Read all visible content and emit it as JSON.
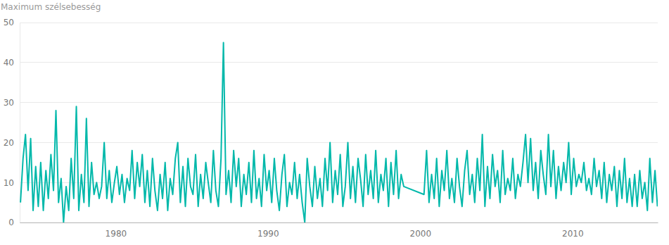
{
  "chart_data": {
    "type": "line",
    "y_label": "Maximum szélsebesség",
    "x": [
      1973.75,
      1973.92,
      1974.08,
      1974.25,
      1974.42,
      1974.58,
      1974.75,
      1974.92,
      1975.08,
      1975.25,
      1975.42,
      1975.58,
      1975.75,
      1975.92,
      1976.08,
      1976.25,
      1976.42,
      1976.58,
      1976.75,
      1976.92,
      1977.08,
      1977.25,
      1977.42,
      1977.58,
      1977.75,
      1977.92,
      1978.08,
      1978.25,
      1978.42,
      1978.58,
      1978.75,
      1978.92,
      1979.08,
      1979.25,
      1979.42,
      1979.58,
      1979.75,
      1979.92,
      1980.08,
      1980.25,
      1980.42,
      1980.58,
      1980.75,
      1980.92,
      1981.08,
      1981.25,
      1981.42,
      1981.58,
      1981.75,
      1981.92,
      1982.08,
      1982.25,
      1982.42,
      1982.58,
      1982.75,
      1982.92,
      1983.08,
      1983.25,
      1983.42,
      1983.58,
      1983.75,
      1983.92,
      1984.08,
      1984.25,
      1984.42,
      1984.58,
      1984.75,
      1984.92,
      1985.08,
      1985.25,
      1985.42,
      1985.58,
      1985.75,
      1985.92,
      1986.08,
      1986.25,
      1986.42,
      1986.58,
      1986.75,
      1986.92,
      1987.08,
      1987.25,
      1987.42,
      1987.58,
      1987.75,
      1987.92,
      1988.08,
      1988.25,
      1988.42,
      1988.58,
      1988.75,
      1988.92,
      1989.08,
      1989.25,
      1989.42,
      1989.58,
      1989.75,
      1989.92,
      1990.08,
      1990.25,
      1990.42,
      1990.58,
      1990.75,
      1990.92,
      1991.08,
      1991.25,
      1991.42,
      1991.58,
      1991.75,
      1991.92,
      1992.08,
      1992.25,
      1992.42,
      1992.58,
      1992.75,
      1992.92,
      1993.08,
      1993.25,
      1993.42,
      1993.58,
      1993.75,
      1993.92,
      1994.08,
      1994.25,
      1994.42,
      1994.58,
      1994.75,
      1994.92,
      1995.08,
      1995.25,
      1995.42,
      1995.58,
      1995.75,
      1995.92,
      1996.08,
      1996.25,
      1996.42,
      1996.58,
      1996.75,
      1996.92,
      1997.08,
      1997.25,
      1997.42,
      1997.58,
      1997.75,
      1997.92,
      1998.08,
      1998.25,
      1998.42,
      1998.58,
      1998.75,
      1998.92,
      2000.25,
      2000.42,
      2000.58,
      2000.75,
      2000.92,
      2001.08,
      2001.25,
      2001.42,
      2001.58,
      2001.75,
      2001.92,
      2002.08,
      2002.25,
      2002.42,
      2002.58,
      2002.75,
      2002.92,
      2003.08,
      2003.25,
      2003.42,
      2003.58,
      2003.75,
      2003.92,
      2004.08,
      2004.25,
      2004.42,
      2004.58,
      2004.75,
      2004.92,
      2005.08,
      2005.25,
      2005.42,
      2005.58,
      2005.75,
      2005.92,
      2006.08,
      2006.25,
      2006.42,
      2006.58,
      2006.75,
      2006.92,
      2007.08,
      2007.25,
      2007.42,
      2007.58,
      2007.75,
      2007.92,
      2008.08,
      2008.25,
      2008.42,
      2008.58,
      2008.75,
      2008.92,
      2009.08,
      2009.25,
      2009.42,
      2009.58,
      2009.75,
      2009.92,
      2010.08,
      2010.25,
      2010.42,
      2010.58,
      2010.75,
      2010.92,
      2011.08,
      2011.25,
      2011.42,
      2011.58,
      2011.75,
      2011.92,
      2012.08,
      2012.25,
      2012.42,
      2012.58,
      2012.75,
      2012.92,
      2013.08,
      2013.25,
      2013.42,
      2013.58,
      2013.75,
      2013.92,
      2014.08,
      2014.25,
      2014.42,
      2014.58,
      2014.75,
      2014.92,
      2015.08,
      2015.25,
      2015.42,
      2015.58
    ],
    "values": [
      5,
      16,
      22,
      8,
      21,
      3,
      14,
      4,
      15,
      3,
      13,
      6,
      17,
      8,
      28,
      5,
      11,
      0,
      9,
      3,
      16,
      6,
      29,
      3,
      12,
      5,
      26,
      4,
      15,
      7,
      10,
      6,
      9,
      20,
      6,
      13,
      5,
      10,
      14,
      7,
      12,
      5,
      11,
      8,
      18,
      6,
      15,
      9,
      17,
      5,
      13,
      4,
      16,
      8,
      3,
      12,
      6,
      15,
      3,
      11,
      7,
      16,
      20,
      5,
      14,
      4,
      16,
      9,
      7,
      17,
      4,
      12,
      6,
      15,
      10,
      5,
      18,
      8,
      4,
      16,
      45,
      7,
      13,
      5,
      18,
      9,
      16,
      4,
      12,
      7,
      15,
      5,
      18,
      6,
      11,
      4,
      17,
      8,
      13,
      5,
      16,
      8,
      3,
      12,
      17,
      4,
      10,
      7,
      15,
      6,
      12,
      5,
      0,
      16,
      9,
      4,
      14,
      6,
      11,
      4,
      16,
      8,
      20,
      5,
      13,
      7,
      17,
      4,
      9,
      20,
      6,
      14,
      5,
      16,
      11,
      4,
      17,
      7,
      13,
      6,
      18,
      5,
      12,
      8,
      16,
      4,
      15,
      7,
      18,
      6,
      12,
      9,
      7,
      18,
      5,
      12,
      6,
      16,
      4,
      13,
      8,
      18,
      6,
      11,
      5,
      16,
      9,
      4,
      13,
      18,
      7,
      12,
      5,
      16,
      8,
      22,
      4,
      14,
      6,
      17,
      9,
      13,
      5,
      18,
      7,
      11,
      8,
      16,
      6,
      12,
      9,
      15,
      22,
      10,
      21,
      8,
      15,
      6,
      18,
      12,
      7,
      22,
      9,
      18,
      6,
      14,
      8,
      15,
      10,
      20,
      7,
      16,
      9,
      12,
      10,
      15,
      8,
      11,
      7,
      16,
      9,
      13,
      6,
      15,
      5,
      12,
      8,
      14,
      4,
      13,
      6,
      16,
      5,
      11,
      4,
      12,
      4,
      13,
      6,
      10,
      3,
      16,
      5,
      13,
      4
    ],
    "color": "#01b8aa",
    "xlim": [
      1973.7,
      2015.6
    ],
    "xticks": [
      1980,
      1990,
      2000,
      2010
    ],
    "ylim": [
      0,
      50
    ],
    "yticks": [
      0,
      10,
      20,
      30,
      40,
      50
    ],
    "grid": true
  }
}
